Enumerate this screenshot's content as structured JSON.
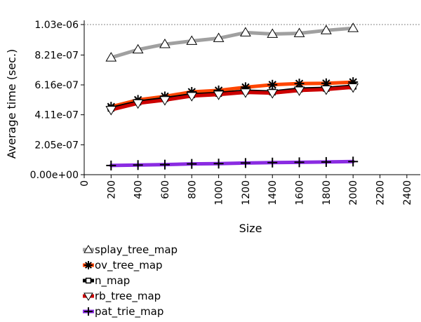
{
  "chart_data": {
    "type": "line",
    "xlabel": "Size",
    "ylabel": "Average time (sec.)",
    "xlim": [
      0,
      2500
    ],
    "ylim": [
      0,
      1.03e-06
    ],
    "x_ticks": [
      0,
      200,
      400,
      600,
      800,
      1000,
      1200,
      1400,
      1600,
      1800,
      2000,
      2200,
      2400
    ],
    "x_tick_labels": [
      "0",
      "200",
      "400",
      "600",
      "800",
      "1000",
      "1200",
      "1400",
      "1600",
      "1800",
      "2000",
      "2200",
      "2400"
    ],
    "y_ticks": [
      0,
      2.05e-07,
      4.11e-07,
      6.16e-07,
      8.21e-07,
      1.03e-06
    ],
    "y_tick_labels": [
      "0.00e+00",
      "2.05e-07",
      "4.11e-07",
      "6.16e-07",
      "8.21e-07",
      "1.03e-06"
    ],
    "reference_line": 1.03e-06,
    "grid": false,
    "legend_position": "bottom-left",
    "x": [
      200,
      400,
      600,
      800,
      1000,
      1200,
      1400,
      1600,
      1800,
      2000
    ],
    "series": [
      {
        "name": "splay_tree_map",
        "color": "#a0a0a0",
        "marker": "triangle-up",
        "values": [
          8.03e-07,
          8.58e-07,
          8.95e-07,
          9.17e-07,
          9.36e-07,
          9.75e-07,
          9.65e-07,
          9.7e-07,
          9.9e-07,
          1.005e-06
        ]
      },
      {
        "name": "ov_tree_map",
        "color": "#ff4500",
        "marker": "asterisk",
        "values": [
          4.66e-07,
          5.13e-07,
          5.37e-07,
          5.68e-07,
          5.78e-07,
          6e-07,
          6.17e-07,
          6.25e-07,
          6.27e-07,
          6.35e-07
        ]
      },
      {
        "name": "n_map",
        "color": "#000000",
        "marker": "square",
        "values": [
          4.55e-07,
          4.98e-07,
          5.22e-07,
          5.48e-07,
          5.57e-07,
          5.73e-07,
          5.67e-07,
          5.87e-07,
          5.92e-07,
          6.07e-07
        ]
      },
      {
        "name": "rb_tree_map",
        "color": "#cc0000",
        "marker": "triangle-down",
        "values": [
          4.45e-07,
          4.9e-07,
          5.12e-07,
          5.4e-07,
          5.5e-07,
          5.65e-07,
          5.6e-07,
          5.78e-07,
          5.85e-07,
          6e-07
        ]
      },
      {
        "name": "pat_trie_map",
        "color": "#8a2be2",
        "marker": "plus",
        "values": [
          6.3e-08,
          6.6e-08,
          6.9e-08,
          7.4e-08,
          7.6e-08,
          8e-08,
          8.3e-08,
          8.5e-08,
          8.7e-08,
          9e-08
        ]
      }
    ]
  }
}
